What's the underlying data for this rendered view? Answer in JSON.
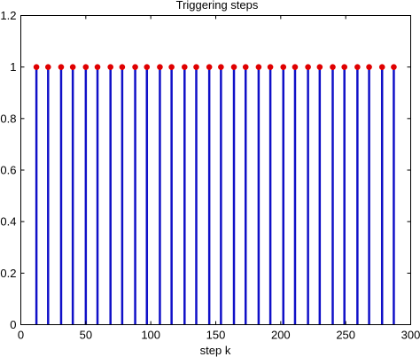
{
  "chart_data": {
    "type": "stem",
    "title": "Triggering steps",
    "xlabel": "step k",
    "ylabel": "",
    "xlim": [
      0,
      300
    ],
    "ylim": [
      0,
      1.2
    ],
    "x_ticks": [
      0,
      50,
      100,
      150,
      200,
      250,
      300
    ],
    "x_tick_labels": [
      "0",
      "50",
      "100",
      "150",
      "200",
      "250",
      "300"
    ],
    "y_ticks": [
      0,
      0.2,
      0.4,
      0.6,
      0.8,
      1,
      1.2
    ],
    "y_tick_labels": [
      "0",
      "0.2",
      "0.4",
      "0.6",
      "0.8",
      "1",
      "1.2"
    ],
    "grid": false,
    "stem_color": "#1010c8",
    "marker_color": "#e00000",
    "series": [
      {
        "x": [
          12,
          21,
          31,
          40,
          50,
          59,
          69,
          78,
          88,
          97,
          107,
          116,
          126,
          135,
          145,
          154,
          164,
          173,
          183,
          192,
          202,
          211,
          221,
          230,
          240,
          249,
          259,
          268,
          278,
          287
        ],
        "y": [
          1,
          1,
          1,
          1,
          1,
          1,
          1,
          1,
          1,
          1,
          1,
          1,
          1,
          1,
          1,
          1,
          1,
          1,
          1,
          1,
          1,
          1,
          1,
          1,
          1,
          1,
          1,
          1,
          1,
          1
        ]
      }
    ]
  }
}
